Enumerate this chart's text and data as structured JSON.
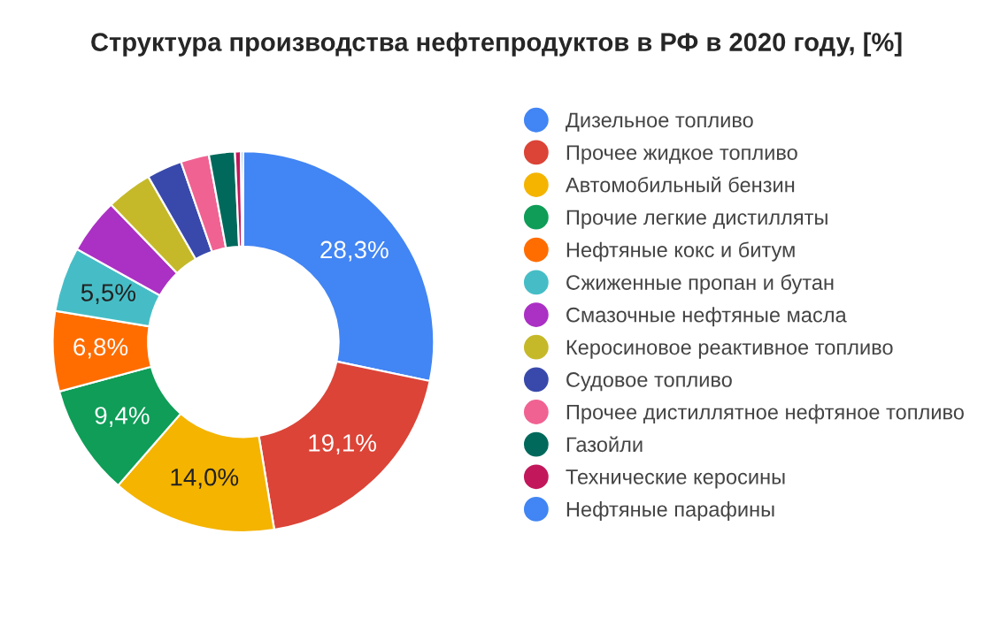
{
  "chart_data": {
    "type": "donut",
    "title": "Структура производства нефтепродуктов в РФ в 2020 году, [%]",
    "categories": [
      "Дизельное топливо",
      "Прочее жидкое топливо",
      "Автомобильный бензин",
      "Прочие легкие дистилляты",
      "Нефтяные кокс и битум",
      "Сжиженные пропан и бутан",
      "Смазочные нефтяные масла",
      "Керосиновое реактивное топливо",
      "Судовое топливо",
      "Прочее дистиллятное нефтяное топливо",
      "Газойли",
      "Технические керосины",
      "Нефтяные парафины"
    ],
    "values": [
      28.3,
      19.1,
      14.0,
      9.4,
      6.8,
      5.5,
      4.7,
      3.9,
      3.0,
      2.4,
      2.2,
      0.5,
      0.2
    ],
    "value_labels": [
      "28,3%",
      "19,1%",
      "14,0%",
      "9,4%",
      "6,8%",
      "5,5%",
      null,
      null,
      null,
      null,
      null,
      null,
      null
    ],
    "colors": [
      "#4285f4",
      "#db4437",
      "#f4b400",
      "#0f9d58",
      "#ff6d01",
      "#46bdc6",
      "#ab30c4",
      "#c5b92a",
      "#3949ab",
      "#f06292",
      "#00695c",
      "#c2185b",
      "#4285f4"
    ],
    "legend": "right"
  }
}
